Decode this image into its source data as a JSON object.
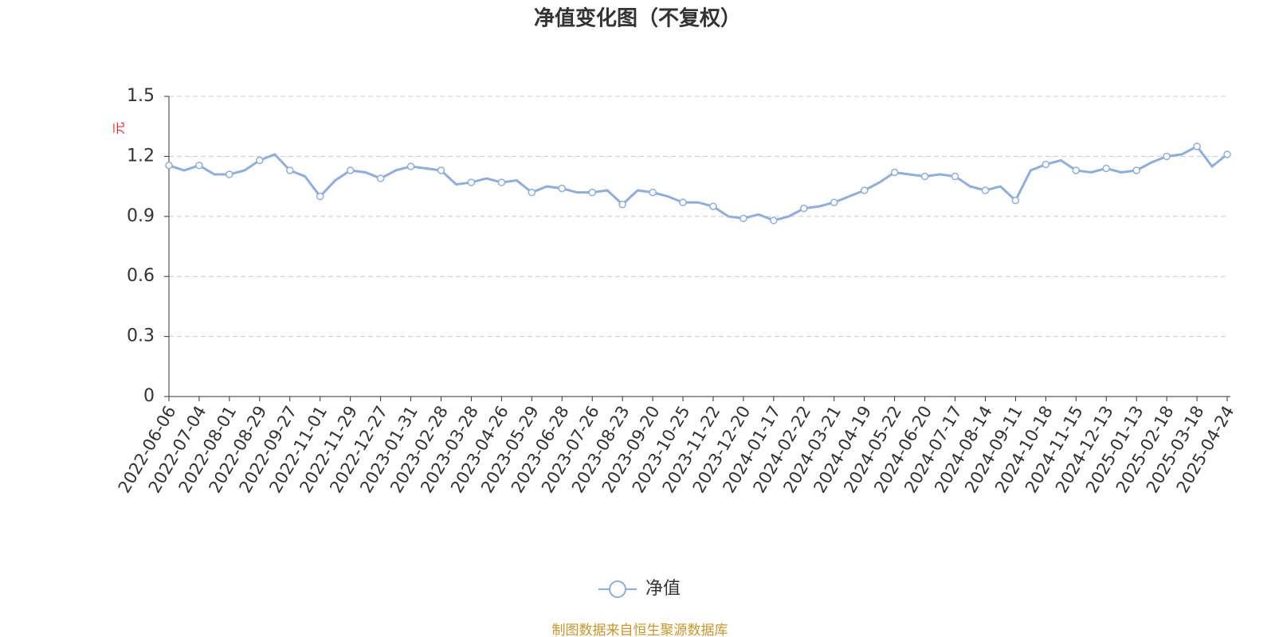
{
  "chart_data": {
    "type": "line",
    "title": "净值变化图（不复权）",
    "y_label": "元",
    "categories": [
      "2022-06-06",
      null,
      "2022-07-04",
      null,
      "2022-08-01",
      null,
      "2022-08-29",
      null,
      "2022-09-27",
      null,
      "2022-11-01",
      null,
      "2022-11-29",
      null,
      "2022-12-27",
      null,
      "2023-01-31",
      null,
      "2023-02-28",
      null,
      "2023-03-28",
      null,
      "2023-04-26",
      null,
      "2023-05-29",
      null,
      "2023-06-28",
      null,
      "2023-07-26",
      null,
      "2023-08-23",
      null,
      "2023-09-20",
      null,
      "2023-10-25",
      null,
      "2023-11-22",
      null,
      "2023-12-20",
      null,
      "2024-01-17",
      null,
      "2024-02-22",
      null,
      "2024-03-21",
      null,
      "2024-04-19",
      null,
      "2024-05-22",
      null,
      "2024-06-20",
      null,
      "2024-07-17",
      null,
      "2024-08-14",
      null,
      "2024-09-11",
      null,
      "2024-10-18",
      null,
      "2024-11-15",
      null,
      "2024-12-13",
      null,
      "2025-01-13",
      null,
      "2025-02-18",
      null,
      "2025-03-18",
      null,
      "2025-04-24"
    ],
    "series": [
      {
        "name": "净值",
        "color": "#8eaedb",
        "values": [
          1.155,
          1.13,
          1.155,
          1.11,
          1.11,
          1.13,
          1.18,
          1.21,
          1.13,
          1.1,
          1.0,
          1.08,
          1.13,
          1.12,
          1.09,
          1.13,
          1.15,
          1.14,
          1.13,
          1.06,
          1.07,
          1.09,
          1.07,
          1.08,
          1.02,
          1.05,
          1.04,
          1.02,
          1.02,
          1.03,
          0.96,
          1.03,
          1.02,
          1.0,
          0.97,
          0.97,
          0.95,
          0.9,
          0.89,
          0.91,
          0.88,
          0.9,
          0.94,
          0.95,
          0.97,
          1.0,
          1.03,
          1.07,
          1.12,
          1.11,
          1.1,
          1.11,
          1.1,
          1.05,
          1.03,
          1.05,
          0.98,
          1.13,
          1.16,
          1.18,
          1.13,
          1.12,
          1.14,
          1.12,
          1.13,
          1.17,
          1.2,
          1.21,
          1.25,
          1.15,
          1.21
        ]
      }
    ],
    "ylim": [
      0,
      1.5
    ],
    "yticks": [
      0,
      {
        "value": 0.3,
        "label": "0.3"
      },
      {
        "value": 0.6,
        "label": "0.6"
      },
      {
        "value": 0.9,
        "label": "0.9"
      },
      {
        "value": 1.2,
        "label": "1.2"
      },
      1.5
    ],
    "grid": true,
    "legend": "bottom",
    "source": "制图数据来自恒生聚源数据库"
  }
}
